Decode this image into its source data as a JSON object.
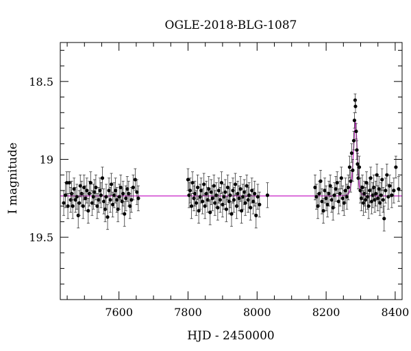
{
  "chart_data": {
    "type": "scatter",
    "title": "OGLE-2018-BLG-1087",
    "xlabel": "HJD - 2450000",
    "ylabel": "I magnitude",
    "xlim": [
      7430,
      8420
    ],
    "ylim": [
      19.9,
      18.25
    ],
    "y_inverted": true,
    "grid": false,
    "x_major_ticks": [
      7600,
      7800,
      8000,
      8200,
      8400
    ],
    "y_major_ticks": [
      18.5,
      19,
      19.5
    ],
    "y_tick_labels": [
      "18.5",
      "19",
      "19.5"
    ],
    "series": [
      {
        "type": "scatter_with_errorbars",
        "color": "#000000",
        "points": [
          [
            7440,
            19.28,
            0.08
          ],
          [
            7445,
            19.23,
            0.08
          ],
          [
            7449,
            19.15,
            0.07
          ],
          [
            7452,
            19.3,
            0.08
          ],
          [
            7456,
            19.15,
            0.07
          ],
          [
            7460,
            19.26,
            0.08
          ],
          [
            7463,
            19.22,
            0.08
          ],
          [
            7466,
            19.3,
            0.08
          ],
          [
            7470,
            19.19,
            0.07
          ],
          [
            7474,
            19.26,
            0.08
          ],
          [
            7478,
            19.24,
            0.08
          ],
          [
            7482,
            19.36,
            0.08
          ],
          [
            7485,
            19.28,
            0.08
          ],
          [
            7488,
            19.17,
            0.07
          ],
          [
            7492,
            19.22,
            0.08
          ],
          [
            7496,
            19.3,
            0.08
          ],
          [
            7499,
            19.18,
            0.08
          ],
          [
            7503,
            19.25,
            0.08
          ],
          [
            7507,
            19.2,
            0.08
          ],
          [
            7511,
            19.33,
            0.08
          ],
          [
            7514,
            19.22,
            0.08
          ],
          [
            7518,
            19.15,
            0.07
          ],
          [
            7522,
            19.28,
            0.08
          ],
          [
            7526,
            19.24,
            0.08
          ],
          [
            7529,
            19.21,
            0.08
          ],
          [
            7533,
            19.18,
            0.08
          ],
          [
            7537,
            19.3,
            0.08
          ],
          [
            7541,
            19.26,
            0.08
          ],
          [
            7545,
            19.2,
            0.08
          ],
          [
            7548,
            19.23,
            0.08
          ],
          [
            7552,
            19.12,
            0.07
          ],
          [
            7556,
            19.27,
            0.08
          ],
          [
            7560,
            19.32,
            0.08
          ],
          [
            7563,
            19.24,
            0.08
          ],
          [
            7567,
            19.37,
            0.08
          ],
          [
            7571,
            19.2,
            0.08
          ],
          [
            7575,
            19.26,
            0.08
          ],
          [
            7578,
            19.16,
            0.07
          ],
          [
            7582,
            19.29,
            0.08
          ],
          [
            7586,
            19.23,
            0.08
          ],
          [
            7590,
            19.2,
            0.08
          ],
          [
            7594,
            19.26,
            0.08
          ],
          [
            7597,
            19.32,
            0.08
          ],
          [
            7601,
            19.24,
            0.08
          ],
          [
            7605,
            19.18,
            0.08
          ],
          [
            7609,
            19.27,
            0.08
          ],
          [
            7612,
            19.22,
            0.08
          ],
          [
            7616,
            19.35,
            0.08
          ],
          [
            7620,
            19.25,
            0.08
          ],
          [
            7624,
            19.19,
            0.08
          ],
          [
            7628,
            19.22,
            0.08
          ],
          [
            7632,
            19.3,
            0.08
          ],
          [
            7636,
            19.26,
            0.08
          ],
          [
            7641,
            19.18,
            0.08
          ],
          [
            7647,
            19.13,
            0.07
          ],
          [
            7652,
            19.21,
            0.08
          ],
          [
            7656,
            19.25,
            0.08
          ],
          [
            7800,
            19.13,
            0.07
          ],
          [
            7803,
            19.23,
            0.08
          ],
          [
            7806,
            19.2,
            0.08
          ],
          [
            7810,
            19.3,
            0.08
          ],
          [
            7813,
            19.15,
            0.07
          ],
          [
            7817,
            19.25,
            0.08
          ],
          [
            7820,
            19.22,
            0.08
          ],
          [
            7824,
            19.28,
            0.08
          ],
          [
            7828,
            19.18,
            0.08
          ],
          [
            7831,
            19.33,
            0.08
          ],
          [
            7835,
            19.24,
            0.08
          ],
          [
            7838,
            19.2,
            0.08
          ],
          [
            7842,
            19.27,
            0.08
          ],
          [
            7846,
            19.16,
            0.07
          ],
          [
            7849,
            19.3,
            0.08
          ],
          [
            7853,
            19.22,
            0.08
          ],
          [
            7857,
            19.26,
            0.08
          ],
          [
            7860,
            19.19,
            0.08
          ],
          [
            7864,
            19.34,
            0.08
          ],
          [
            7867,
            19.21,
            0.08
          ],
          [
            7871,
            19.25,
            0.08
          ],
          [
            7875,
            19.17,
            0.07
          ],
          [
            7878,
            19.28,
            0.08
          ],
          [
            7882,
            19.23,
            0.08
          ],
          [
            7886,
            19.31,
            0.08
          ],
          [
            7889,
            19.2,
            0.08
          ],
          [
            7893,
            19.26,
            0.08
          ],
          [
            7897,
            19.15,
            0.07
          ],
          [
            7900,
            19.29,
            0.08
          ],
          [
            7904,
            19.24,
            0.08
          ],
          [
            7908,
            19.21,
            0.08
          ],
          [
            7911,
            19.32,
            0.08
          ],
          [
            7915,
            19.18,
            0.08
          ],
          [
            7919,
            19.27,
            0.08
          ],
          [
            7922,
            19.23,
            0.08
          ],
          [
            7926,
            19.35,
            0.08
          ],
          [
            7930,
            19.2,
            0.08
          ],
          [
            7933,
            19.26,
            0.08
          ],
          [
            7937,
            19.16,
            0.07
          ],
          [
            7941,
            19.3,
            0.08
          ],
          [
            7944,
            19.22,
            0.08
          ],
          [
            7948,
            19.25,
            0.08
          ],
          [
            7952,
            19.19,
            0.08
          ],
          [
            7955,
            19.33,
            0.08
          ],
          [
            7959,
            19.24,
            0.08
          ],
          [
            7963,
            19.21,
            0.08
          ],
          [
            7966,
            19.28,
            0.08
          ],
          [
            7970,
            19.17,
            0.07
          ],
          [
            7974,
            19.26,
            0.08
          ],
          [
            7977,
            19.23,
            0.08
          ],
          [
            7981,
            19.31,
            0.08
          ],
          [
            7985,
            19.2,
            0.08
          ],
          [
            7989,
            19.27,
            0.08
          ],
          [
            7993,
            19.22,
            0.08
          ],
          [
            7997,
            19.36,
            0.08
          ],
          [
            8002,
            19.24,
            0.08
          ],
          [
            8007,
            19.29,
            0.08
          ],
          [
            8030,
            19.23,
            0.08
          ],
          [
            8168,
            19.18,
            0.08
          ],
          [
            8172,
            19.24,
            0.08
          ],
          [
            8176,
            19.3,
            0.08
          ],
          [
            8180,
            19.22,
            0.08
          ],
          [
            8184,
            19.14,
            0.07
          ],
          [
            8188,
            19.27,
            0.08
          ],
          [
            8192,
            19.33,
            0.08
          ],
          [
            8196,
            19.2,
            0.08
          ],
          [
            8200,
            19.25,
            0.08
          ],
          [
            8204,
            19.29,
            0.08
          ],
          [
            8208,
            19.22,
            0.08
          ],
          [
            8212,
            19.17,
            0.07
          ],
          [
            8216,
            19.26,
            0.08
          ],
          [
            8220,
            19.31,
            0.08
          ],
          [
            8224,
            19.23,
            0.08
          ],
          [
            8228,
            19.19,
            0.08
          ],
          [
            8232,
            19.15,
            0.07
          ],
          [
            8236,
            19.27,
            0.08
          ],
          [
            8240,
            19.22,
            0.08
          ],
          [
            8244,
            19.12,
            0.07
          ],
          [
            8248,
            19.25,
            0.08
          ],
          [
            8252,
            19.28,
            0.08
          ],
          [
            8256,
            19.2,
            0.08
          ],
          [
            8260,
            19.24,
            0.08
          ],
          [
            8264,
            19.18,
            0.08
          ],
          [
            8268,
            19.05,
            0.07
          ],
          [
            8271,
            19.14,
            0.07
          ],
          [
            8274,
            18.96,
            0.06
          ],
          [
            8277,
            19.07,
            0.07
          ],
          [
            8280,
            18.88,
            0.06
          ],
          [
            8282,
            18.75,
            0.05
          ],
          [
            8284,
            18.62,
            0.04
          ],
          [
            8285,
            18.66,
            0.04
          ],
          [
            8287,
            18.82,
            0.05
          ],
          [
            8289,
            18.94,
            0.06
          ],
          [
            8291,
            19.03,
            0.07
          ],
          [
            8293,
            19.12,
            0.07
          ],
          [
            8296,
            19.05,
            0.07
          ],
          [
            8299,
            19.2,
            0.08
          ],
          [
            8302,
            19.25,
            0.08
          ],
          [
            8305,
            19.18,
            0.08
          ],
          [
            8308,
            19.28,
            0.08
          ],
          [
            8311,
            19.22,
            0.08
          ],
          [
            8314,
            19.26,
            0.08
          ],
          [
            8317,
            19.15,
            0.07
          ],
          [
            8320,
            19.24,
            0.08
          ],
          [
            8323,
            19.3,
            0.08
          ],
          [
            8326,
            19.2,
            0.08
          ],
          [
            8329,
            19.12,
            0.07
          ],
          [
            8332,
            19.27,
            0.08
          ],
          [
            8335,
            19.23,
            0.08
          ],
          [
            8338,
            19.18,
            0.08
          ],
          [
            8341,
            19.26,
            0.08
          ],
          [
            8344,
            19.22,
            0.08
          ],
          [
            8347,
            19.1,
            0.07
          ],
          [
            8350,
            19.25,
            0.08
          ],
          [
            8353,
            19.19,
            0.08
          ],
          [
            8356,
            19.28,
            0.08
          ],
          [
            8359,
            19.23,
            0.08
          ],
          [
            8362,
            19.13,
            0.07
          ],
          [
            8365,
            19.26,
            0.08
          ],
          [
            8368,
            19.38,
            0.08
          ],
          [
            8372,
            19.2,
            0.08
          ],
          [
            8376,
            19.1,
            0.07
          ],
          [
            8380,
            19.24,
            0.08
          ],
          [
            8384,
            19.17,
            0.07
          ],
          [
            8390,
            19.23,
            0.08
          ],
          [
            8396,
            19.2,
            0.08
          ],
          [
            8402,
            19.05,
            0.07
          ],
          [
            8410,
            19.19,
            0.08
          ]
        ]
      },
      {
        "type": "line",
        "color": "#cc33cc",
        "x": [
          7430,
          8200,
          8240,
          8255,
          8265,
          8270,
          8274,
          8277,
          8280,
          8282,
          8284,
          8285,
          8286,
          8288,
          8290,
          8293,
          8296,
          8300,
          8305,
          8315,
          8330,
          8420
        ],
        "y": [
          19.235,
          19.235,
          19.234,
          19.232,
          19.22,
          19.19,
          19.13,
          19.04,
          18.92,
          18.83,
          18.77,
          18.76,
          18.78,
          18.85,
          18.95,
          19.08,
          19.17,
          19.21,
          19.228,
          19.233,
          19.235,
          19.235
        ]
      }
    ]
  }
}
